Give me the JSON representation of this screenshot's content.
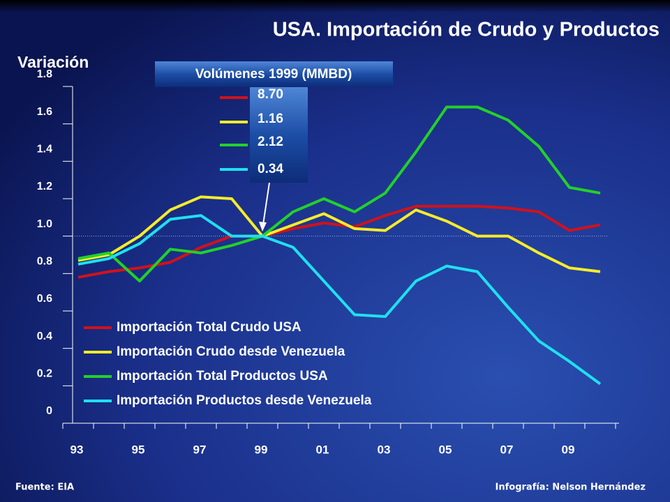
{
  "chart_data": {
    "type": "line",
    "title": "USA. Importación de Crudo y Productos",
    "y_label": "Variación",
    "categories": [
      "93",
      null,
      "95",
      null,
      "97",
      null,
      "99",
      null,
      "01",
      null,
      "03",
      null,
      "05",
      null,
      "07",
      null,
      "09",
      null
    ],
    "series": [
      {
        "name": "Importación Total Crudo USA",
        "color": "#d0121b",
        "values": [
          0.78,
          0.81,
          0.83,
          0.86,
          0.94,
          1.0,
          1.0,
          1.04,
          1.07,
          1.05,
          1.11,
          1.16,
          1.16,
          1.16,
          1.15,
          1.13,
          1.03,
          1.06
        ]
      },
      {
        "name": "Importación Crudo desde Venezuela",
        "color": "#f5ec2a",
        "values": [
          0.87,
          0.9,
          1.0,
          1.14,
          1.21,
          1.2,
          1.0,
          1.06,
          1.12,
          1.04,
          1.03,
          1.14,
          1.08,
          1.0,
          1.0,
          0.91,
          0.83,
          0.81
        ]
      },
      {
        "name": "Importación Total Productos USA",
        "color": "#22d12a",
        "values": [
          0.88,
          0.91,
          0.76,
          0.93,
          0.91,
          0.95,
          1.0,
          1.13,
          1.2,
          1.13,
          1.23,
          1.45,
          1.69,
          1.69,
          1.62,
          1.48,
          1.26,
          1.23
        ]
      },
      {
        "name": "Importación Productos desde Venezuela",
        "color": "#1fe0f0",
        "values": [
          0.85,
          0.88,
          0.96,
          1.09,
          1.11,
          1.0,
          1.0,
          0.94,
          0.76,
          0.58,
          0.57,
          0.76,
          0.84,
          0.81,
          0.62,
          0.44,
          0.33,
          0.21
        ]
      }
    ],
    "ylim": [
      0,
      1.8
    ],
    "yticks": [
      0,
      0.2,
      0.4,
      0.6,
      0.8,
      {
        "value": 1,
        "label": "1.0"
      },
      1.2,
      1.4,
      1.6,
      1.8
    ],
    "reference_line": 1,
    "volumes": {
      "title": "Volúmenes 1999 (MMBD)",
      "labels": [
        "8.70",
        "1.16",
        "2.12",
        "0.34"
      ]
    },
    "source": "Fuente: EIA",
    "credit": "Infografía: Nelson Hernández"
  }
}
